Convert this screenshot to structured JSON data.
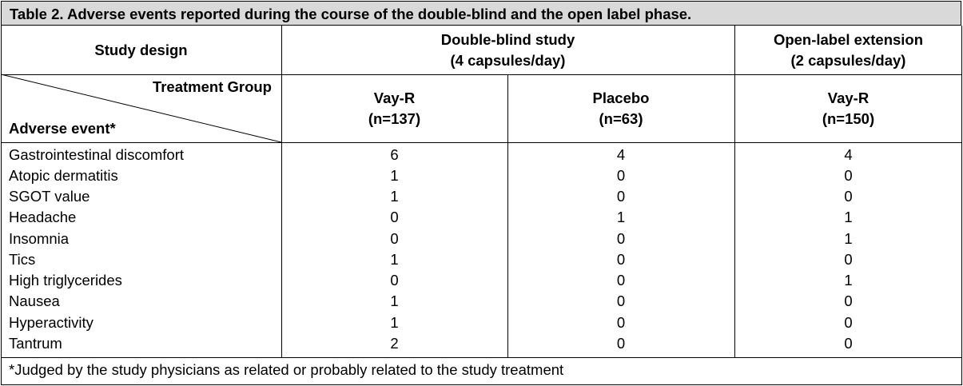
{
  "table": {
    "title": "Table 2. Adverse events reported during the course of the double-blind and the open label phase.",
    "header": {
      "study_design": "Study design",
      "double_blind_line1": "Double-blind study",
      "double_blind_line2": "(4 capsules/day)",
      "open_label_line1": "Open-label extension",
      "open_label_line2": "(2 capsules/day)",
      "treatment_group": "Treatment Group",
      "adverse_event": "Adverse event*",
      "col1_name": "Vay-R",
      "col1_n": "(n=137)",
      "col2_name": "Placebo",
      "col2_n": "(n=63)",
      "col3_name": "Vay-R",
      "col3_n": "(n=150)"
    },
    "rows": [
      {
        "event": "Gastrointestinal discomfort",
        "db_vayr": "6",
        "db_placebo": "4",
        "ol_vayr": "4"
      },
      {
        "event": "Atopic dermatitis",
        "db_vayr": "1",
        "db_placebo": "0",
        "ol_vayr": "0"
      },
      {
        "event": "SGOT value",
        "db_vayr": "1",
        "db_placebo": "0",
        "ol_vayr": "0"
      },
      {
        "event": "Headache",
        "db_vayr": "0",
        "db_placebo": "1",
        "ol_vayr": "1"
      },
      {
        "event": "Insomnia",
        "db_vayr": "0",
        "db_placebo": "0",
        "ol_vayr": "1"
      },
      {
        "event": "Tics",
        "db_vayr": "1",
        "db_placebo": "0",
        "ol_vayr": "0"
      },
      {
        "event": "High triglycerides",
        "db_vayr": "0",
        "db_placebo": "0",
        "ol_vayr": "1"
      },
      {
        "event": "Nausea",
        "db_vayr": "1",
        "db_placebo": "0",
        "ol_vayr": "0"
      },
      {
        "event": "Hyperactivity",
        "db_vayr": "1",
        "db_placebo": "0",
        "ol_vayr": "0"
      },
      {
        "event": "Tantrum",
        "db_vayr": "2",
        "db_placebo": "0",
        "ol_vayr": "0"
      }
    ],
    "footnote": "*Judged by the study physicians as related or probably related to the study treatment"
  }
}
